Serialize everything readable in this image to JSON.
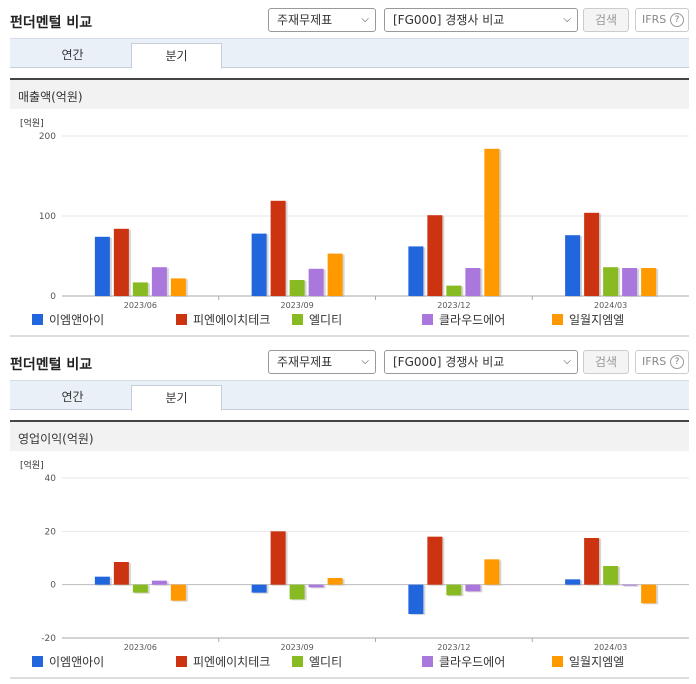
{
  "panels": [
    {
      "title": "펀더멘털 비교",
      "select1": "주재무제표",
      "select2": "[FG000] 경쟁사 비교",
      "search_label": "검색",
      "ifrs_label": "IFRS",
      "ifrs_help": "?",
      "tabs": [
        "연간",
        "분기"
      ],
      "active_tab": 1,
      "section_title": "매출액(억원)",
      "unit_label": "[억원]",
      "chart_data": {
        "type": "bar",
        "title": "매출액(억원)",
        "ylabel": "[억원]",
        "categories": [
          "2023/06",
          "2023/09",
          "2023/12",
          "2024/03"
        ],
        "ylim": [
          0,
          200
        ],
        "yticks": [
          0,
          100,
          200
        ],
        "series": [
          {
            "name": "이엠앤아이",
            "color": "#2266dd",
            "values": [
              74,
              78,
              62,
              76
            ]
          },
          {
            "name": "피엔에이치테크",
            "color": "#cc3311",
            "values": [
              84,
              119,
              101,
              104
            ]
          },
          {
            "name": "엘디티",
            "color": "#88bb22",
            "values": [
              17,
              20,
              13,
              36
            ]
          },
          {
            "name": "클라우드에어",
            "color": "#aa77dd",
            "values": [
              36,
              34,
              35,
              35
            ]
          },
          {
            "name": "일월지엠엘",
            "color": "#ff9900",
            "values": [
              22,
              53,
              184,
              35
            ]
          }
        ]
      }
    },
    {
      "title": "펀더멘털 비교",
      "select1": "주재무제표",
      "select2": "[FG000] 경쟁사 비교",
      "search_label": "검색",
      "ifrs_label": "IFRS",
      "ifrs_help": "?",
      "tabs": [
        "연간",
        "분기"
      ],
      "active_tab": 1,
      "section_title": "영업이익(억원)",
      "unit_label": "[억원]",
      "chart_data": {
        "type": "bar",
        "title": "영업이익(억원)",
        "ylabel": "[억원]",
        "categories": [
          "2023/06",
          "2023/09",
          "2023/12",
          "2024/03"
        ],
        "ylim": [
          -20,
          40
        ],
        "yticks": [
          -20,
          0,
          20,
          40
        ],
        "series": [
          {
            "name": "이엠앤아이",
            "color": "#2266dd",
            "values": [
              3,
              -3,
              -11,
              2
            ]
          },
          {
            "name": "피엔에이치테크",
            "color": "#cc3311",
            "values": [
              8.5,
              20,
              18,
              17.5
            ]
          },
          {
            "name": "엘디티",
            "color": "#88bb22",
            "values": [
              -3,
              -5.5,
              -4,
              7
            ]
          },
          {
            "name": "클라우드에어",
            "color": "#aa77dd",
            "values": [
              1.5,
              -1,
              -2.5,
              0
            ]
          },
          {
            "name": "일월지엠엘",
            "color": "#ff9900",
            "values": [
              -6,
              2.5,
              9.5,
              -7
            ]
          }
        ]
      }
    }
  ]
}
